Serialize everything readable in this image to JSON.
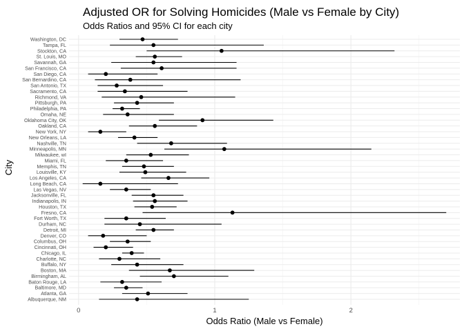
{
  "chart_data": {
    "type": "scatter",
    "title": "Adjusted OR for Solving Homicides (Male vs Female by City)",
    "subtitle": "Odds Ratios and 95% CI for each city",
    "xlabel": "Odds Ratio (Male vs Female)",
    "ylabel": "City",
    "xlim": [
      -0.07,
      2.8
    ],
    "xticks": [
      0,
      1,
      2
    ],
    "xtick_labels": [
      "0",
      "1",
      "2"
    ],
    "grid": true,
    "cities_bottom_to_top": [
      "Albuquerque, NM",
      "Atlanta, GA",
      "Baltimore, MD",
      "Baton Rouge, LA",
      "Birmingham, AL",
      "Boston, MA",
      "Buffalo, NY",
      "Charlotte, NC",
      "Chicago, IL",
      "Cincinnati, OH",
      "Columbus, OH",
      "Denver, CO",
      "Detroit, MI",
      "Durham, NC",
      "Fort Worth, TX",
      "Fresno, CA",
      "Houston, TX",
      "Indianapolis, IN",
      "Jacksonville, FL",
      "Las Vegas, NV",
      "Long Beach, CA",
      "Los Angeles, CA",
      "Louisville, KY",
      "Memphis, TN",
      "Miami, FL",
      "Milwaukee, wI",
      "Minneapolis, MN",
      "Nashville, TN",
      "New Orleans, LA",
      "New York, NY",
      "Oakland, CA",
      "Oklahoma City, OK",
      "Omaha, NE",
      "Philadelphia, PA",
      "Pittsburgh, PA",
      "Richmond, VA",
      "Sacramento, CA",
      "San Antonio, TX",
      "San Bernardino, CA",
      "San Diego, CA",
      "San Francisco, CA",
      "Savannah, GA",
      "St. Louis, MO",
      "Stockton, CA",
      "Tampa, FL",
      "Washington, DC"
    ],
    "or": [
      0.43,
      0.51,
      0.35,
      0.32,
      0.7,
      0.67,
      0.43,
      0.3,
      0.39,
      0.2,
      0.36,
      0.18,
      0.55,
      0.45,
      0.35,
      1.13,
      0.54,
      0.56,
      0.55,
      0.35,
      0.16,
      0.66,
      0.49,
      0.48,
      0.35,
      0.53,
      1.07,
      0.68,
      0.41,
      0.16,
      0.56,
      0.91,
      0.36,
      0.32,
      0.43,
      0.46,
      0.34,
      0.28,
      0.38,
      0.2,
      0.61,
      0.55,
      0.56,
      1.05,
      0.55,
      0.47
    ],
    "ci_low": [
      0.15,
      0.32,
      0.26,
      0.16,
      0.45,
      0.37,
      0.24,
      0.15,
      0.32,
      0.11,
      0.23,
      0.07,
      0.42,
      0.19,
      0.19,
      0.47,
      0.41,
      0.4,
      0.39,
      0.23,
      0.03,
      0.46,
      0.3,
      0.32,
      0.2,
      0.35,
      0.63,
      0.43,
      0.29,
      0.07,
      0.37,
      0.59,
      0.18,
      0.25,
      0.26,
      0.17,
      0.14,
      0.14,
      0.12,
      0.07,
      0.31,
      0.24,
      0.42,
      0.5,
      0.23,
      0.3
    ],
    "ci_high": [
      1.25,
      0.8,
      0.47,
      0.61,
      1.1,
      1.29,
      0.77,
      0.6,
      0.48,
      0.4,
      0.53,
      0.5,
      0.7,
      1.05,
      0.64,
      2.7,
      0.72,
      0.8,
      0.77,
      0.53,
      0.73,
      0.96,
      0.79,
      0.7,
      0.62,
      0.81,
      2.15,
      1.09,
      0.58,
      0.35,
      0.87,
      1.43,
      0.7,
      0.45,
      0.7,
      1.15,
      0.8,
      0.62,
      1.19,
      0.58,
      1.16,
      1.16,
      0.76,
      2.32,
      1.36,
      0.73
    ]
  }
}
